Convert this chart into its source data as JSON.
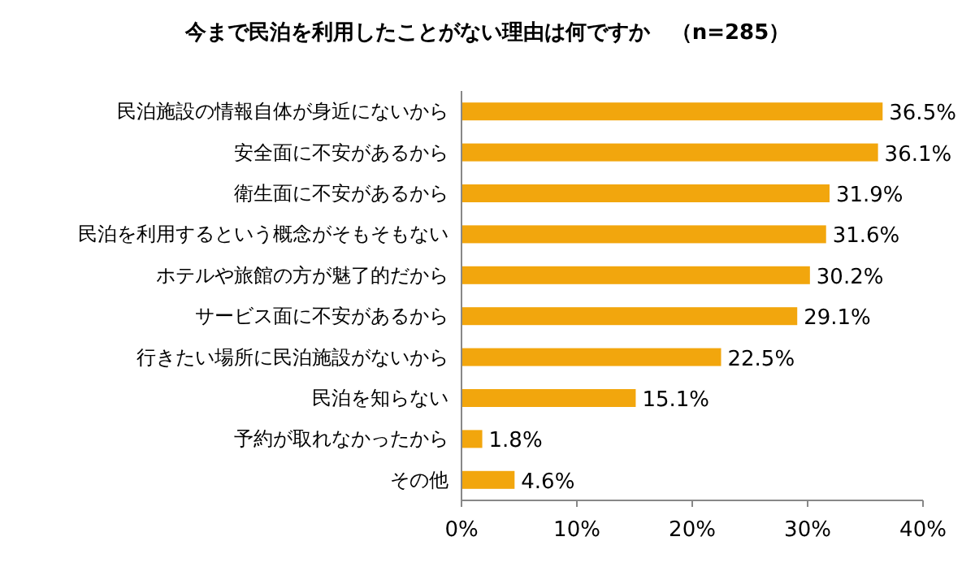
{
  "chart_data": {
    "type": "bar",
    "orientation": "horizontal",
    "title": "今まで民泊を利用したことがない理由は何ですか　（n=285）",
    "categories": [
      "民泊施設の情報自体が身近にないから",
      "安全面に不安があるから",
      "衛生面に不安があるから",
      "民泊を利用するという概念がそもそもない",
      "ホテルや旅館の方が魅了的だから",
      "サービス面に不安があるから",
      "行きたい場所に民泊施設がないから",
      "民泊を知らない",
      "予約が取れなかったから",
      "その他"
    ],
    "values": [
      36.5,
      36.1,
      31.9,
      31.6,
      30.2,
      29.1,
      22.5,
      15.1,
      1.8,
      4.6
    ],
    "value_labels": [
      "36.5%",
      "36.1%",
      "31.9%",
      "31.6%",
      "30.2%",
      "29.1%",
      "22.5%",
      "15.1%",
      "1.8%",
      "4.6%"
    ],
    "color": "#f2a60d",
    "xlim": [
      0,
      40
    ],
    "xticks": [
      {
        "value": 0,
        "label": "0%"
      },
      {
        "value": 10,
        "label": "10%"
      },
      {
        "value": 20,
        "label": "20%"
      },
      {
        "value": 30,
        "label": "30%"
      },
      {
        "value": 40,
        "label": "40%"
      }
    ]
  }
}
